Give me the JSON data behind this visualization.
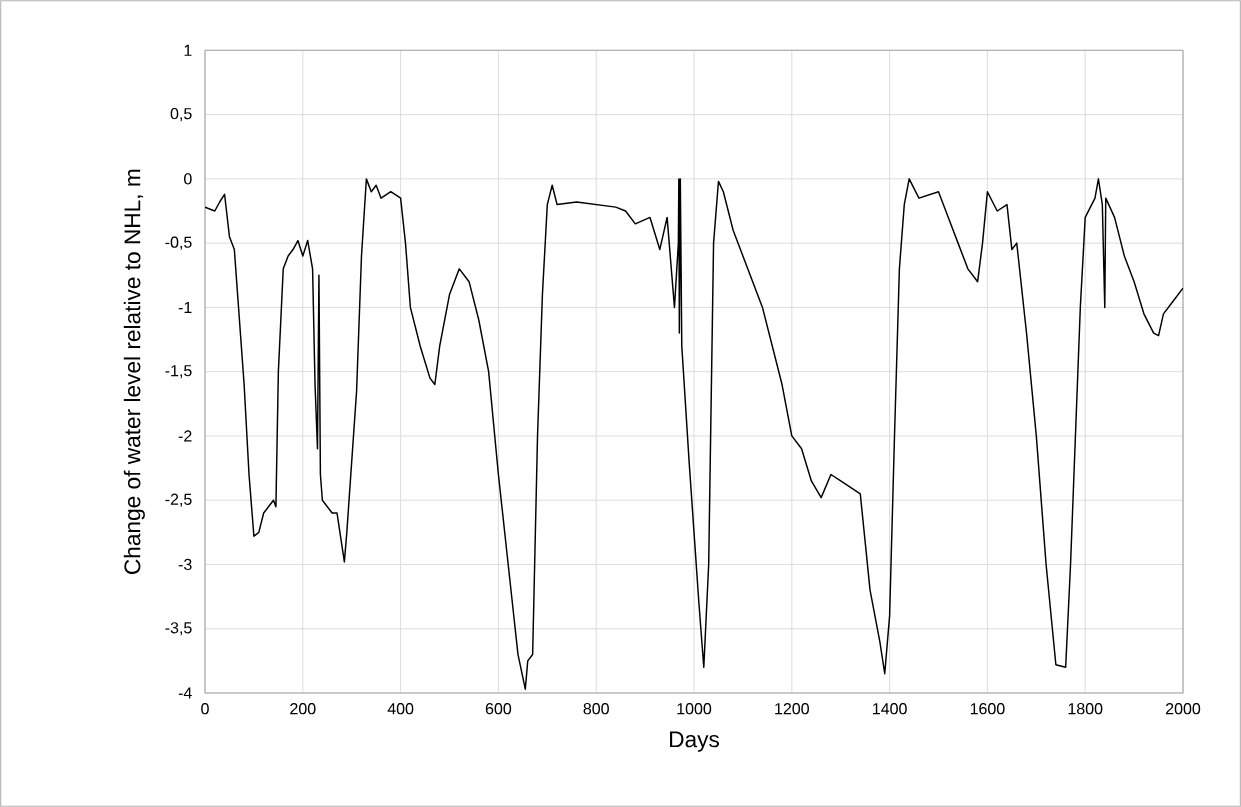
{
  "chart_data": {
    "type": "line",
    "xlabel": "Days",
    "ylabel": "Change of water level relative to NHL, m",
    "xlim": [
      0,
      2000
    ],
    "ylim": [
      -4,
      1
    ],
    "xticks": [
      0,
      200,
      400,
      600,
      800,
      1000,
      1200,
      1400,
      1600,
      1800,
      2000
    ],
    "yticks": [
      -4,
      {
        "value": -3.5,
        "label": "-3,5"
      },
      -3,
      {
        "value": -2.5,
        "label": "-2,5"
      },
      -2,
      {
        "value": -1.5,
        "label": "-1,5"
      },
      -1,
      {
        "value": -0.5,
        "label": "-0,5"
      },
      0,
      {
        "value": 0.5,
        "label": "0,5"
      },
      1
    ],
    "grid": true,
    "marker": "none",
    "line_style": "solid",
    "series": [
      {
        "color": "#000000",
        "x": [
          0,
          20,
          30,
          40,
          50,
          60,
          80,
          90,
          100,
          110,
          120,
          140,
          145,
          150,
          160,
          170,
          180,
          190,
          200,
          210,
          220,
          225,
          230,
          233,
          236,
          240,
          260,
          270,
          285,
          290,
          310,
          320,
          330,
          340,
          350,
          360,
          380,
          400,
          410,
          420,
          440,
          460,
          470,
          480,
          500,
          520,
          540,
          560,
          580,
          600,
          620,
          640,
          655,
          660,
          670,
          680,
          690,
          700,
          710,
          720,
          760,
          800,
          840,
          860,
          880,
          910,
          930,
          945,
          960,
          968,
          969,
          970,
          972,
          975,
          990,
          1000,
          1010,
          1020,
          1030,
          1040,
          1050,
          1060,
          1080,
          1100,
          1140,
          1180,
          1200,
          1220,
          1240,
          1260,
          1280,
          1300,
          1320,
          1340,
          1360,
          1380,
          1390,
          1400,
          1410,
          1420,
          1430,
          1440,
          1460,
          1500,
          1520,
          1540,
          1560,
          1580,
          1590,
          1600,
          1620,
          1640,
          1650,
          1660,
          1680,
          1700,
          1720,
          1740,
          1760,
          1770,
          1790,
          1800,
          1820,
          1827,
          1835,
          1840,
          1842,
          1860,
          1880,
          1900,
          1920,
          1940,
          1950,
          1960,
          1980,
          2000
        ],
        "values": [
          -0.22,
          -0.25,
          -0.18,
          -0.12,
          -0.45,
          -0.55,
          -1.6,
          -2.3,
          -2.78,
          -2.75,
          -2.6,
          -2.5,
          -2.55,
          -1.5,
          -0.7,
          -0.6,
          -0.55,
          -0.48,
          -0.6,
          -0.48,
          -0.7,
          -1.6,
          -2.1,
          -0.75,
          -2.3,
          -2.5,
          -2.6,
          -2.6,
          -2.98,
          -2.75,
          -1.65,
          -0.6,
          0,
          -0.1,
          -0.05,
          -0.15,
          -0.1,
          -0.15,
          -0.5,
          -1.0,
          -1.3,
          -1.55,
          -1.6,
          -1.3,
          -0.9,
          -0.7,
          -0.8,
          -1.1,
          -1.5,
          -2.3,
          -3.0,
          -3.7,
          -3.97,
          -3.75,
          -3.7,
          -2.0,
          -0.9,
          -0.2,
          -0.05,
          -0.2,
          -0.18,
          -0.2,
          -0.22,
          -0.25,
          -0.35,
          -0.3,
          -0.55,
          -0.3,
          -1.0,
          -0.5,
          0,
          -1.2,
          0,
          -1.3,
          -2.2,
          -2.75,
          -3.3,
          -3.8,
          -3.0,
          -0.5,
          -0.02,
          -0.1,
          -0.4,
          -0.6,
          -1.0,
          -1.6,
          -2.0,
          -2.1,
          -2.35,
          -2.48,
          -2.3,
          -2.35,
          -2.4,
          -2.45,
          -3.2,
          -3.6,
          -3.85,
          -3.4,
          -2.0,
          -0.7,
          -0.2,
          0,
          -0.15,
          -0.1,
          -0.3,
          -0.5,
          -0.7,
          -0.8,
          -0.5,
          -0.1,
          -0.25,
          -0.2,
          -0.55,
          -0.5,
          -1.2,
          -2.0,
          -3.0,
          -3.78,
          -3.8,
          -3.0,
          -1.0,
          -0.3,
          -0.15,
          0,
          -0.2,
          -1.0,
          -0.15,
          -0.3,
          -0.6,
          -0.8,
          -1.05,
          -1.2,
          -1.22,
          -1.05,
          -0.95,
          -0.85
        ]
      }
    ]
  }
}
